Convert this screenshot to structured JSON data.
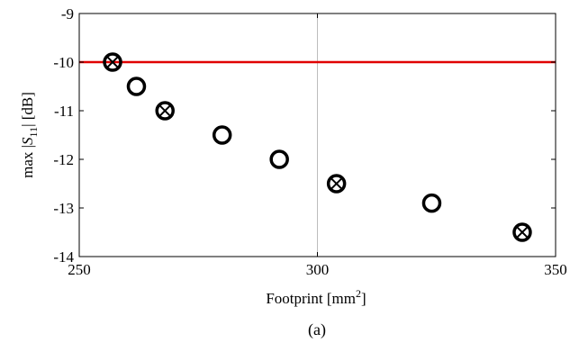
{
  "chart_data": {
    "type": "scatter",
    "xlabel": "Footprint [mm²]",
    "ylabel": "max |S11| [dB]",
    "caption": "(a)",
    "xlim": [
      250,
      350
    ],
    "ylim": [
      -14,
      -9
    ],
    "xticks": [
      250,
      300,
      350
    ],
    "yticks": [
      -14,
      -13,
      -12,
      -11,
      -10,
      -9
    ],
    "grid": "single vertical line at x=300",
    "points": [
      {
        "x": 257,
        "y": -10.0,
        "marker": "circle-x"
      },
      {
        "x": 262,
        "y": -10.5,
        "marker": "circle"
      },
      {
        "x": 268,
        "y": -11.0,
        "marker": "circle-x"
      },
      {
        "x": 280,
        "y": -11.5,
        "marker": "circle"
      },
      {
        "x": 292,
        "y": -12.0,
        "marker": "circle"
      },
      {
        "x": 304,
        "y": -12.5,
        "marker": "circle-x"
      },
      {
        "x": 324,
        "y": -12.9,
        "marker": "circle"
      },
      {
        "x": 343,
        "y": -13.5,
        "marker": "circle-x"
      }
    ],
    "threshold": {
      "y": -10,
      "color": "#e00000"
    },
    "colors": {
      "marker": "#000000",
      "threshold": "#e00000",
      "axes": "#000000",
      "grid": "#bdbdbd"
    }
  }
}
